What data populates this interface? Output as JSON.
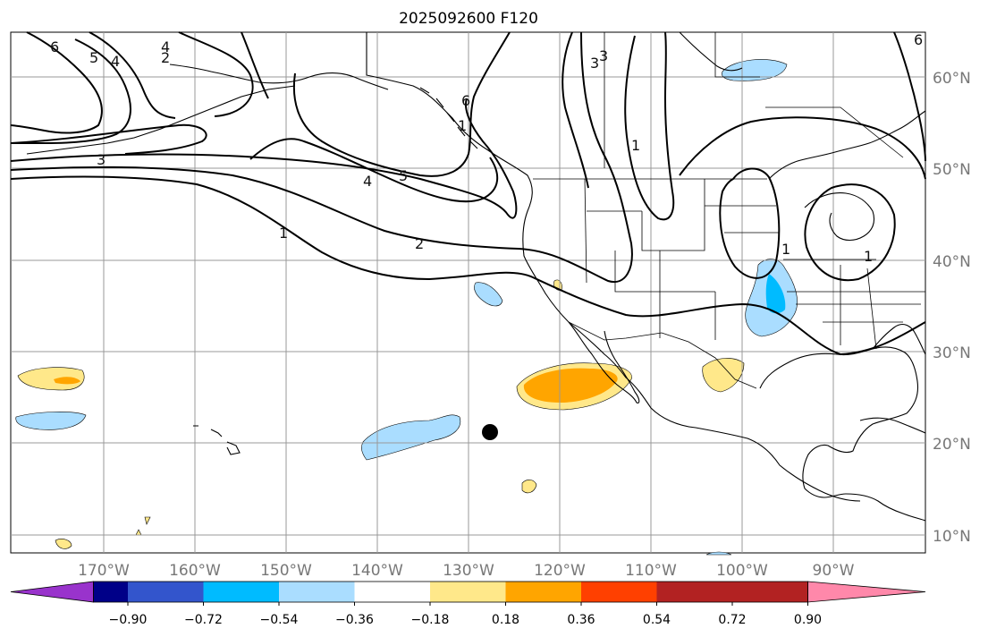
{
  "title": "2025092600 F120",
  "lat_labels": [
    "60°N",
    "50°N",
    "40°N",
    "30°N",
    "20°N",
    "10°N"
  ],
  "lon_labels": [
    "170°W",
    "160°W",
    "150°W",
    "140°W",
    "130°W",
    "120°W",
    "110°W",
    "100°W",
    "90°W"
  ],
  "colorbar": {
    "tick_labels": [
      "−0.90",
      "−0.72",
      "−0.54",
      "−0.36",
      "−0.18",
      "0.18",
      "0.36",
      "0.54",
      "0.72",
      "0.90"
    ],
    "colors": [
      "#9933cc",
      "#000088",
      "#3355cc",
      "#00bbff",
      "#aaddff",
      "#ffffff",
      "#ffe88a",
      "#ffa500",
      "#ff4000",
      "#b22222",
      "#ff88aa"
    ]
  },
  "contour_labels": [
    "6",
    "5",
    "4",
    "3",
    "2",
    "1",
    "1",
    "2",
    "3",
    "4",
    "5",
    "6",
    "6",
    "3",
    "4",
    "1",
    "1",
    "1"
  ],
  "marker": {
    "name": "storm-position-dot"
  },
  "shading_colors": {
    "light_blue": "#aaddff",
    "blue": "#00bbff",
    "light_yellow": "#ffe88a",
    "orange": "#ffa500"
  }
}
